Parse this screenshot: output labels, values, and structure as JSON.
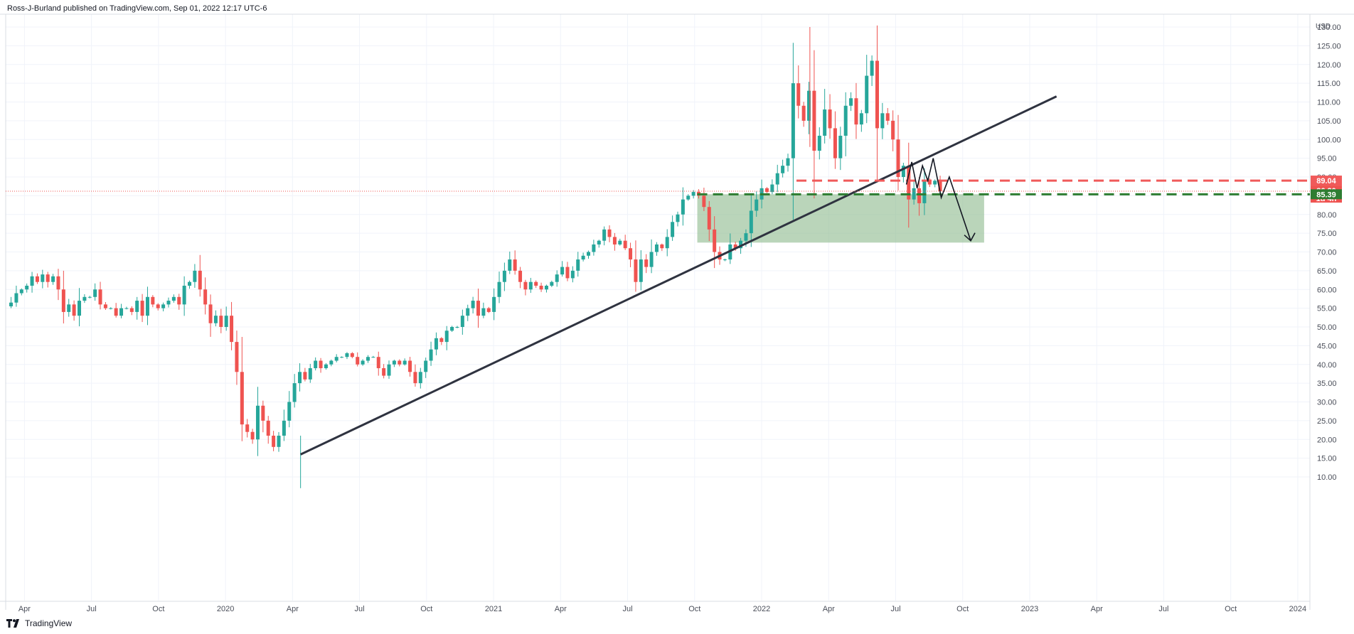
{
  "header": {
    "published": "Ross-J-Burland published on TradingView.com, Sep 01, 2022 12:17 UTC-6"
  },
  "footer": {
    "brand": "TradingView",
    "logo_icon": "tradingview-logo-icon"
  },
  "chart_data": {
    "type": "candlestick",
    "ylabel": "USD",
    "ylim": [
      6,
      132
    ],
    "y_ticks": [
      "10.00",
      "15.00",
      "20.00",
      "25.00",
      "30.00",
      "35.00",
      "40.00",
      "45.00",
      "50.00",
      "55.00",
      "60.00",
      "65.00",
      "70.00",
      "75.00",
      "80.00",
      "85.00",
      "90.00",
      "95.00",
      "100.00",
      "105.00",
      "110.00",
      "115.00",
      "120.00",
      "125.00",
      "130.00"
    ],
    "y_tick_values": [
      10,
      15,
      20,
      25,
      30,
      35,
      40,
      45,
      50,
      55,
      60,
      65,
      70,
      75,
      80,
      85,
      90,
      95,
      100,
      105,
      110,
      115,
      120,
      125,
      130
    ],
    "x_ticks": [
      {
        "label": "Apr",
        "t": 2019.25
      },
      {
        "label": "Jul",
        "t": 2019.5
      },
      {
        "label": "Oct",
        "t": 2019.75
      },
      {
        "label": "2020",
        "t": 2020.0
      },
      {
        "label": "Apr",
        "t": 2020.25
      },
      {
        "label": "Jul",
        "t": 2020.5
      },
      {
        "label": "Oct",
        "t": 2020.75
      },
      {
        "label": "2021",
        "t": 2021.0
      },
      {
        "label": "Apr",
        "t": 2021.25
      },
      {
        "label": "Jul",
        "t": 2021.5
      },
      {
        "label": "Oct",
        "t": 2021.75
      },
      {
        "label": "2022",
        "t": 2022.0
      },
      {
        "label": "Apr",
        "t": 2022.25
      },
      {
        "label": "Jul",
        "t": 2022.5
      },
      {
        "label": "Oct",
        "t": 2022.75
      },
      {
        "label": "2023",
        "t": 2023.0
      },
      {
        "label": "Apr",
        "t": 2023.25
      },
      {
        "label": "Jul",
        "t": 2023.5
      },
      {
        "label": "Oct",
        "t": 2023.75
      },
      {
        "label": "2024",
        "t": 2024.0
      }
    ],
    "xlim": [
      2019.18,
      2024.04
    ],
    "colors": {
      "up": "#26a69a",
      "down": "#ef5350",
      "trendline": "#2f3340",
      "zone": "#8fbc8f",
      "resistance": "#f05a5a",
      "support": "#2e7d32"
    },
    "closes": [
      56.5,
      59,
      60,
      61,
      63.5,
      62,
      64,
      62,
      63.5,
      60,
      54,
      56,
      53,
      57,
      58,
      58,
      60,
      56,
      55,
      55,
      53,
      55,
      55,
      54,
      57,
      53,
      58,
      56,
      55,
      56,
      57,
      58,
      56,
      61,
      62,
      65,
      60,
      56,
      51,
      53,
      50,
      53,
      46,
      38,
      24,
      22,
      20,
      29,
      25,
      21,
      18,
      21,
      25,
      30,
      35,
      38,
      36,
      39,
      41,
      39,
      40,
      41,
      42,
      42,
      43,
      42,
      40,
      41,
      42,
      42,
      39,
      37,
      40,
      41,
      40,
      41,
      38,
      35,
      38,
      41,
      44,
      47,
      46,
      49,
      50,
      50,
      53,
      55,
      57,
      53,
      55,
      54,
      58,
      62,
      65,
      68,
      65,
      62,
      60,
      62,
      61,
      60,
      61,
      62,
      64,
      66,
      63,
      65,
      68,
      69,
      70,
      72,
      73,
      76,
      74,
      72,
      73,
      71,
      68,
      62,
      68,
      66,
      70,
      72,
      71,
      74,
      78,
      80,
      84,
      85,
      86,
      85,
      82,
      76,
      70,
      68,
      68,
      72,
      71,
      73,
      75,
      81,
      84,
      87,
      86,
      88,
      91,
      93,
      95,
      115,
      109,
      105,
      113,
      97,
      101,
      108,
      103,
      95,
      101,
      109,
      111,
      104,
      107,
      117,
      121,
      103,
      107,
      105,
      100,
      90,
      93,
      84,
      87,
      83,
      89,
      88,
      89,
      86.2
    ],
    "events": [
      {
        "t": 2019.2,
        "o": 56,
        "h": 58,
        "l": 55,
        "c": 57
      },
      {
        "t": 2020.28,
        "o": 17.5,
        "h": 21,
        "l": 7,
        "c": 19
      }
    ],
    "trendline": {
      "x1": 2020.28,
      "y1": 16,
      "x2": 2023.1,
      "y2": 111.5
    },
    "demand_zone": {
      "t1": 2021.76,
      "t2": 2022.83,
      "y1": 72.5,
      "y2": 85.4
    },
    "resistance_level": {
      "value": 89.04,
      "t1": 2022.13
    },
    "support_level": {
      "value": 85.39,
      "t1": 2021.76
    },
    "last_price": 86.2,
    "zigzag_projection": [
      [
        2022.54,
        88
      ],
      [
        2022.56,
        94
      ],
      [
        2022.58,
        87
      ],
      [
        2022.6,
        93
      ],
      [
        2022.62,
        89
      ],
      [
        2022.64,
        95
      ],
      [
        2022.67,
        84.5
      ],
      [
        2022.7,
        90
      ],
      [
        2022.78,
        73
      ]
    ],
    "price_tags": [
      {
        "label": "89.04",
        "value": 89.04,
        "color": "#f05a5a"
      },
      {
        "label": "86.20",
        "sub": "1d 4h",
        "value": 86.2,
        "color": "#ef5350"
      },
      {
        "label": "85.39",
        "value": 85.39,
        "color": "#2e7d32"
      }
    ]
  }
}
